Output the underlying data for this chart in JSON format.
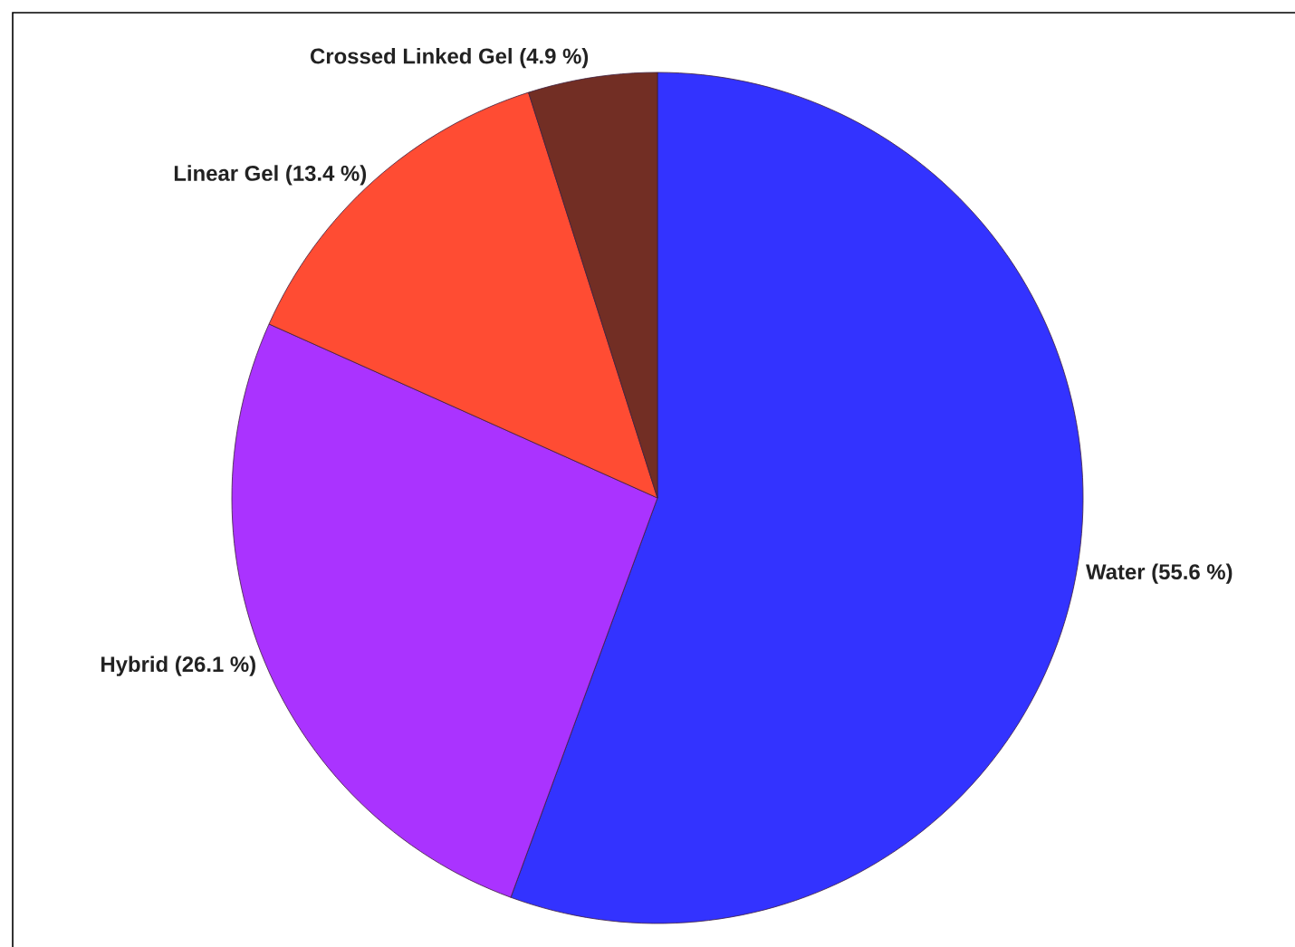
{
  "chart_data": {
    "type": "pie",
    "categories": [
      "Water",
      "Hybrid",
      "Linear Gel",
      "Crossed Linked Gel"
    ],
    "values": [
      55.6,
      26.1,
      13.4,
      4.9
    ],
    "value_labels": [
      "(55.6 %)",
      "(26.1 %)",
      "(13.4 %)",
      "(4.9 %)"
    ],
    "colors": [
      "#3333ff",
      "#aa33ff",
      "#ff4c33",
      "#722e24"
    ]
  }
}
